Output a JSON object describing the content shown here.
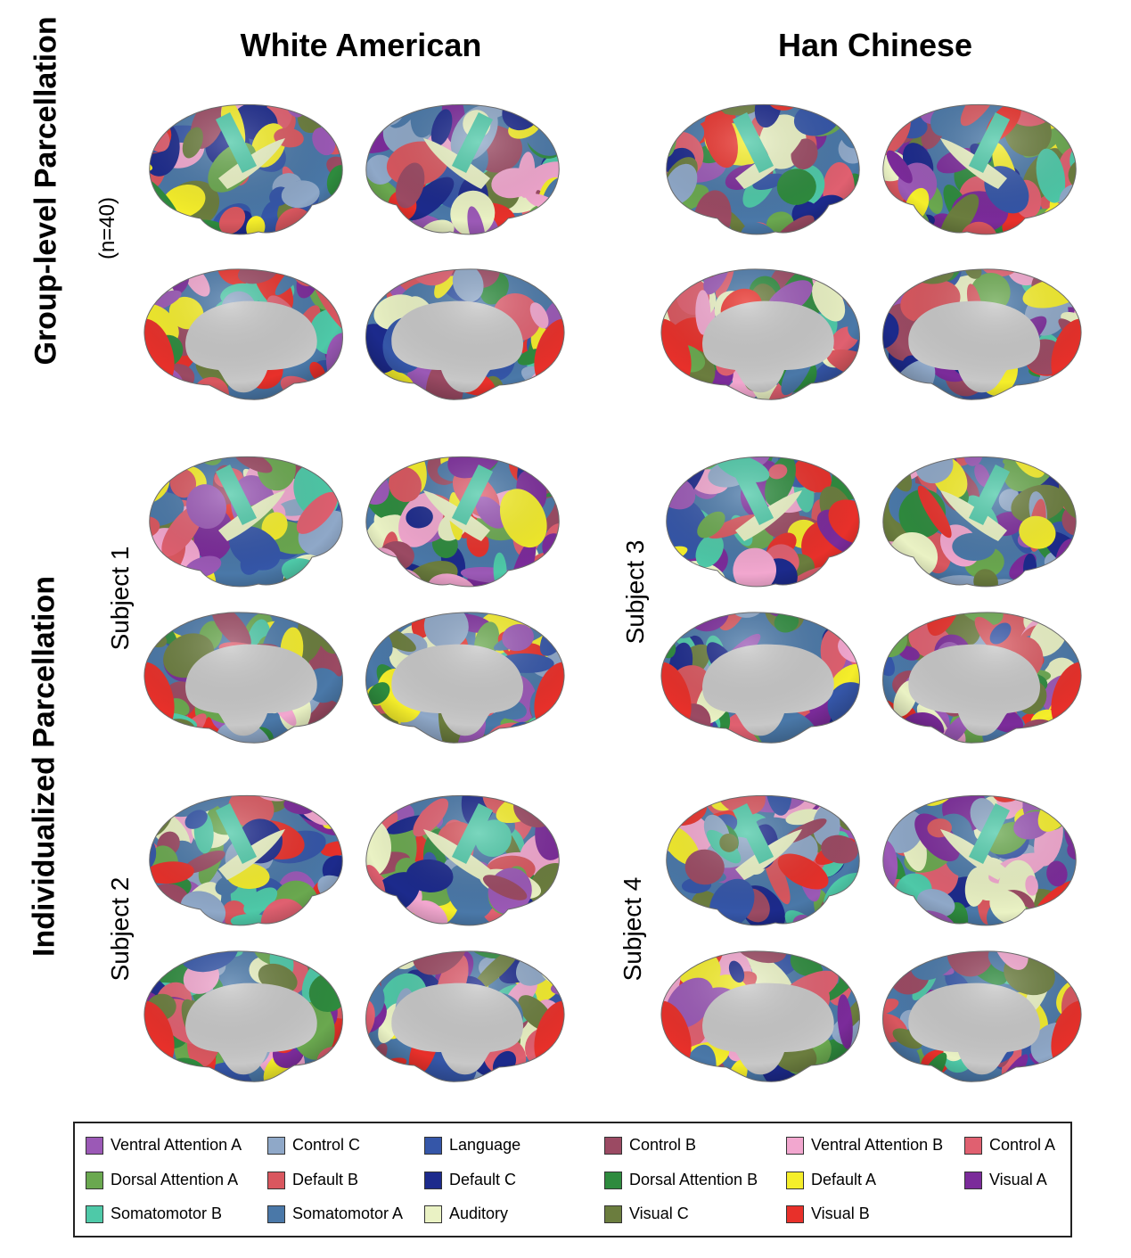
{
  "columns": {
    "left": "White American",
    "right": "Han Chinese"
  },
  "rows": {
    "group_label": "Group-level Parcellation",
    "group_n": "(n=40)",
    "individual_label": "Individualized Parcellation"
  },
  "subjects": {
    "s1": "Subject 1",
    "s2": "Subject 2",
    "s3": "Subject 3",
    "s4": "Subject 4"
  },
  "legend": [
    {
      "label": "Ventral Attention A",
      "color": "#9b59b6"
    },
    {
      "label": "Control C",
      "color": "#8fa8c8"
    },
    {
      "label": "Language",
      "color": "#3556a8"
    },
    {
      "label": "Control B",
      "color": "#9b4a63"
    },
    {
      "label": "Ventral Attention B",
      "color": "#f2a7cf"
    },
    {
      "label": "Control A",
      "color": "#e06070"
    },
    {
      "label": "Dorsal Attention A",
      "color": "#6aa84f"
    },
    {
      "label": "Default B",
      "color": "#d9575f"
    },
    {
      "label": "Default C",
      "color": "#1c2a8c"
    },
    {
      "label": "Dorsal Attention B",
      "color": "#2e8b3e"
    },
    {
      "label": "Default A",
      "color": "#f5ee2a"
    },
    {
      "label": "Visual A",
      "color": "#7b2b9a"
    },
    {
      "label": "Somatomotor B",
      "color": "#4ec9a8"
    },
    {
      "label": "Somatomotor A",
      "color": "#4a78a8"
    },
    {
      "label": "Auditory",
      "color": "#eaf2c4"
    },
    {
      "label": "Visual C",
      "color": "#6b7d3e"
    },
    {
      "label": "Visual B",
      "color": "#e8302a"
    }
  ],
  "colors": {
    "medial_wall": "#c8c8c8",
    "auditory": "#eaf2c4",
    "visual_b": "#e8302a"
  }
}
